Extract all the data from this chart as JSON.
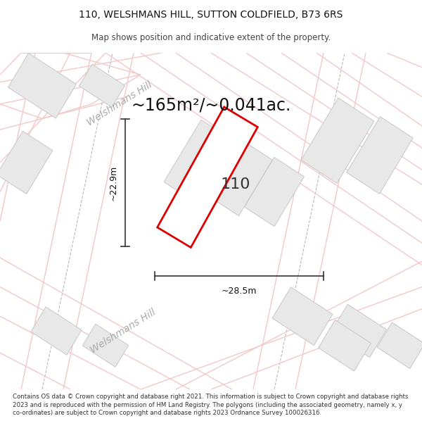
{
  "title": "110, WELSHMANS HILL, SUTTON COLDFIELD, B73 6RS",
  "subtitle": "Map shows position and indicative extent of the property.",
  "area_text": "~165m²/~0.041ac.",
  "label_110": "110",
  "dim_width": "~28.5m",
  "dim_height": "~22.9m",
  "road_label1": "Welshmans Hill",
  "road_label2": "Welshmans Hill",
  "footer": "Contains OS data © Crown copyright and database right 2021. This information is subject to Crown copyright and database rights 2023 and is reproduced with the permission of HM Land Registry. The polygons (including the associated geometry, namely x, y co-ordinates) are subject to Crown copyright and database rights 2023 Ordnance Survey 100026316.",
  "bg_color": "#ffffff",
  "map_bg": "#ffffff",
  "road_color": "#f2c8c8",
  "parcel_fill": "#e8e8e8",
  "parcel_edge": "#cccccc",
  "plot_fill": "#ffffff",
  "plot_edge": "#dd0000",
  "title_fontsize": 10,
  "subtitle_fontsize": 8.5,
  "area_fontsize": 17,
  "label_fontsize": 16,
  "dim_fontsize": 9,
  "road_label_fontsize": 10,
  "footer_fontsize": 6.2
}
